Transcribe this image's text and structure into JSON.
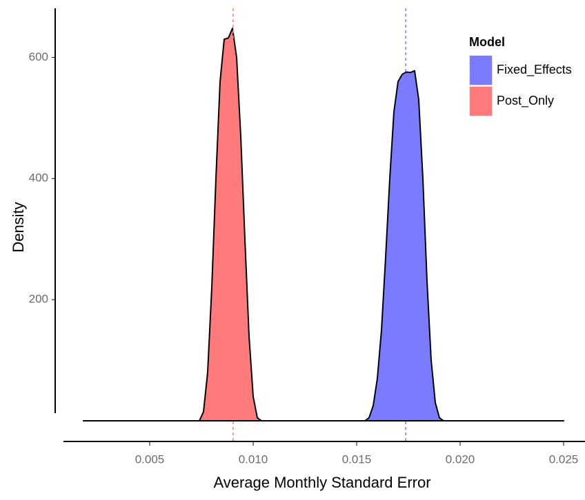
{
  "chart_data": {
    "type": "density",
    "x_label": "Average Monthly Standard Error",
    "y_label": "Density",
    "legend_title": "Model",
    "legend_position": "top-right",
    "xlim": [
      0.0008,
      0.026
    ],
    "xticks": [
      0.005,
      {
        "value": 0.01,
        "label": "0.010"
      },
      0.015,
      {
        "value": 0.02,
        "label": "0.020"
      },
      0.025
    ],
    "ylim": [
      0,
      680
    ],
    "yticks": [
      200,
      400,
      600
    ],
    "series": [
      {
        "name": "Fixed_Effects",
        "color": "#7b7bff",
        "mean": 0.01737,
        "x": [
          0.0018,
          0.0154,
          0.0156,
          0.0158,
          0.016,
          0.0162,
          0.0164,
          0.0166,
          0.0168,
          0.017,
          0.0172,
          0.0174,
          0.0176,
          0.0178,
          0.018,
          0.0182,
          0.0184,
          0.0186,
          0.0188,
          0.019,
          0.0192,
          0.025
        ],
        "values": [
          0,
          0,
          5,
          25,
          70,
          150,
          270,
          400,
          510,
          560,
          572,
          576,
          575,
          578,
          530,
          400,
          230,
          100,
          30,
          5,
          0,
          0
        ]
      },
      {
        "name": "Post_Only",
        "color": "#ff7b7b",
        "mean": 0.00903,
        "x": [
          0.0018,
          0.0074,
          0.0076,
          0.0078,
          0.008,
          0.0082,
          0.0084,
          0.0086,
          0.0088,
          0.009,
          0.0092,
          0.0094,
          0.0096,
          0.0098,
          0.01,
          0.0102,
          0.0104,
          0.025
        ],
        "values": [
          0,
          0,
          15,
          80,
          220,
          400,
          560,
          630,
          632,
          648,
          600,
          470,
          300,
          140,
          40,
          5,
          0,
          0
        ]
      }
    ]
  }
}
